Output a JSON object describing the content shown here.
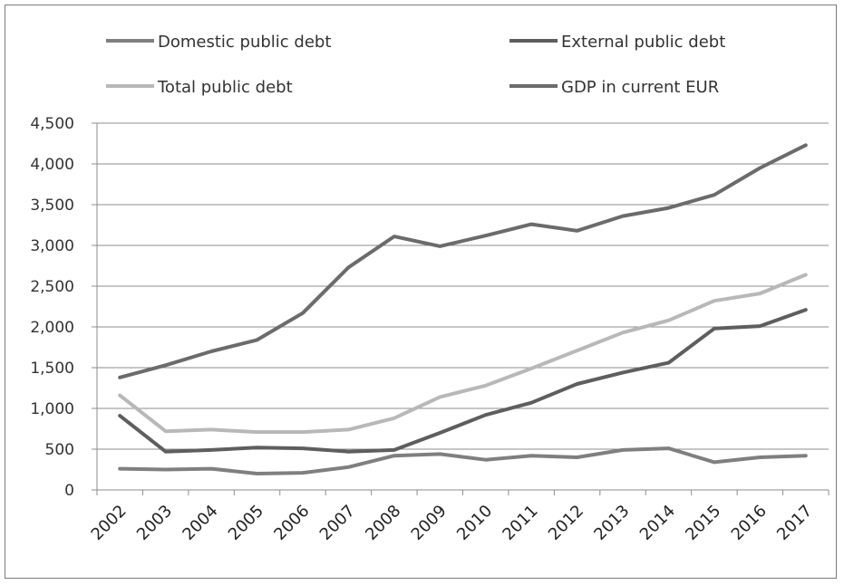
{
  "chart_data": {
    "type": "line",
    "title": "",
    "xlabel": "",
    "ylabel": "",
    "categories": [
      "2002",
      "2003",
      "2004",
      "2005",
      "2006",
      "2007",
      "2008",
      "2009",
      "2010",
      "2011",
      "2012",
      "2013",
      "2014",
      "2015",
      "2016",
      "2017"
    ],
    "ylim": [
      0,
      4500
    ],
    "yticks": [
      0,
      500,
      1000,
      1500,
      2000,
      2500,
      3000,
      3500,
      4000,
      4500
    ],
    "ytick_labels": [
      "0",
      "500",
      "1,000",
      "1,500",
      "2,000",
      "2,500",
      "3,000",
      "3,500",
      "4,000",
      "4,500"
    ],
    "grid": "horizontal",
    "legend_position": "top",
    "series": [
      {
        "name": "Domestic public debt",
        "color": "#7f7f7f",
        "values": [
          260,
          250,
          260,
          200,
          210,
          280,
          420,
          440,
          370,
          420,
          400,
          490,
          510,
          340,
          400,
          420
        ]
      },
      {
        "name": "External public debt",
        "color": "#5e5e5e",
        "values": [
          910,
          470,
          490,
          520,
          510,
          470,
          490,
          700,
          920,
          1070,
          1300,
          1440,
          1560,
          1980,
          2010,
          2210
        ]
      },
      {
        "name": "Total public debt",
        "color": "#b8b8b8",
        "values": [
          1160,
          720,
          740,
          710,
          710,
          740,
          880,
          1140,
          1280,
          1490,
          1710,
          1930,
          2080,
          2320,
          2410,
          2640
        ]
      },
      {
        "name": "GDP in current EUR",
        "color": "#6b6b6b",
        "values": [
          1380,
          1530,
          1700,
          1840,
          2170,
          2730,
          3110,
          2990,
          3120,
          3260,
          3180,
          3360,
          3460,
          3620,
          3950,
          4230
        ]
      }
    ]
  }
}
